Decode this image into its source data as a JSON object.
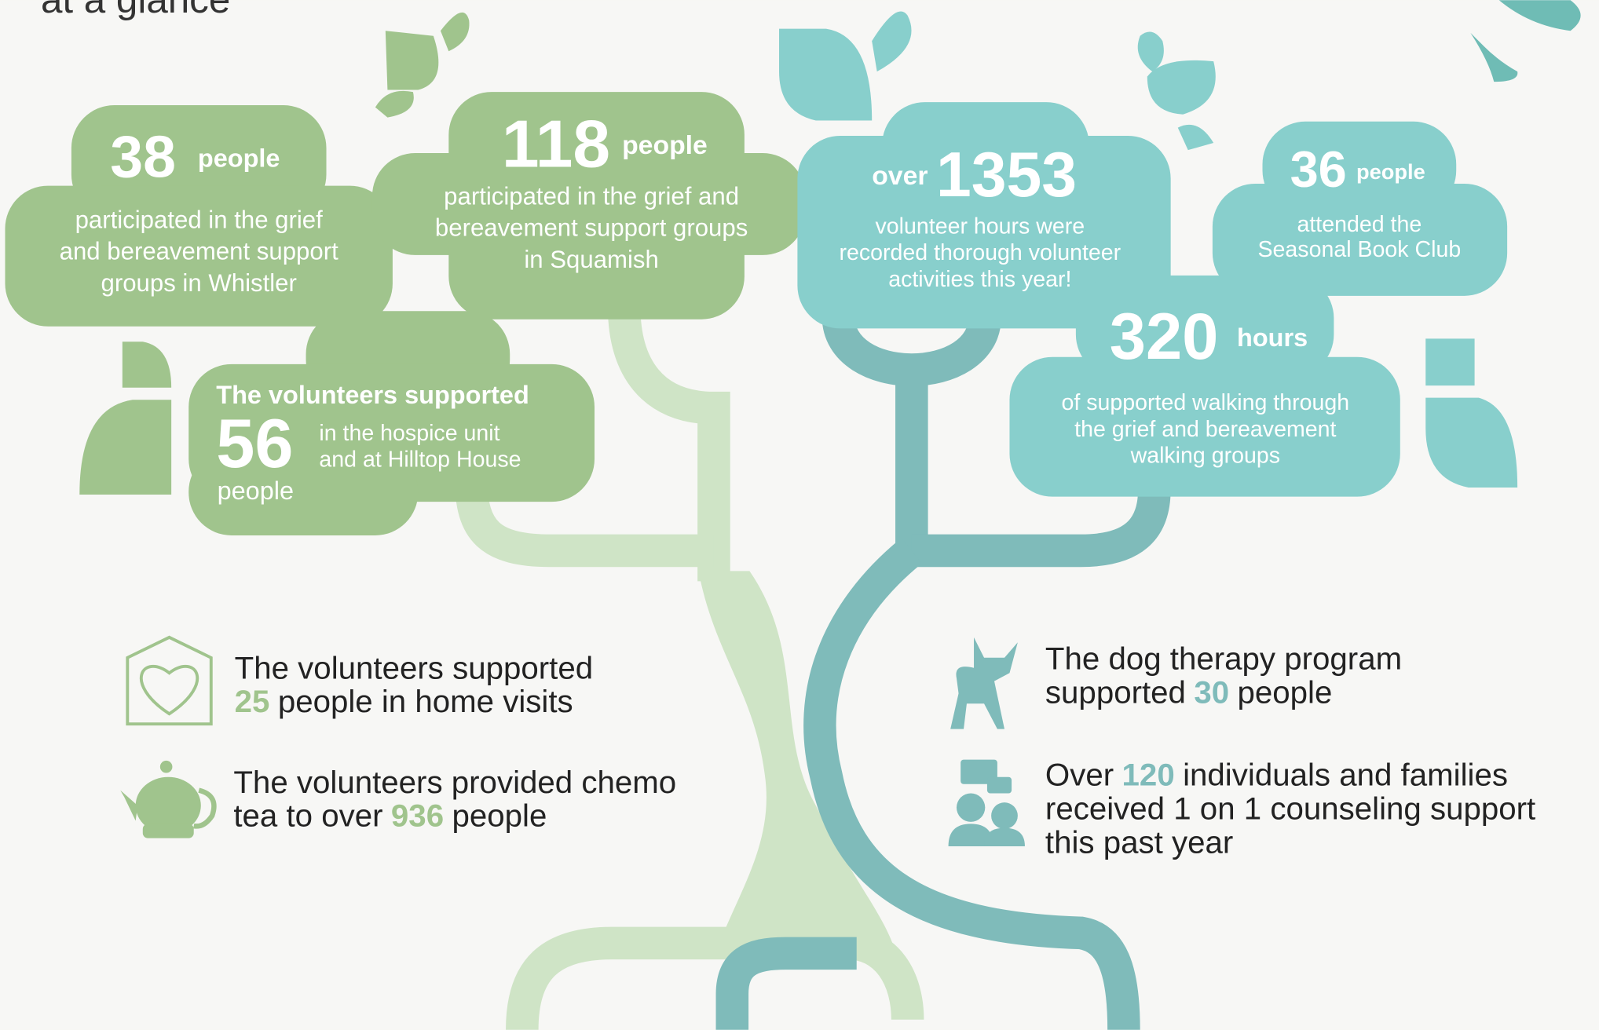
{
  "header": {
    "title": "at a glance"
  },
  "clouds": [
    {
      "number": "38",
      "unit": "people",
      "text": [
        "participated in the grief",
        "and bereavement support",
        "groups in Whistler"
      ]
    },
    {
      "number": "118",
      "unit": "people",
      "text": [
        "participated in the grief and",
        "bereavement support groups",
        "in Squamish"
      ]
    },
    {
      "prefix": "over",
      "number": "1353",
      "text": [
        "volunteer hours were",
        "recorded thorough volunteer",
        "activities this year!"
      ]
    },
    {
      "number": "36",
      "unit": "people",
      "text": [
        "attended the",
        "Seasonal Book Club"
      ]
    },
    {
      "number": "320",
      "unit": "hours",
      "text": [
        "of supported walking through",
        "the grief and bereavement",
        "walking groups"
      ]
    },
    {
      "lead": "The volunteers supported",
      "number": "56",
      "unit": "people",
      "text": [
        "in the hospice unit",
        "and at Hilltop House"
      ]
    }
  ],
  "facts": [
    {
      "lines": [
        [
          "The volunteers supported"
        ],
        [
          {
            "number": "25"
          },
          "people in home visits"
        ]
      ]
    },
    {
      "lines": [
        [
          "The volunteers provided chemo"
        ],
        [
          "tea to over",
          {
            "number": "936"
          },
          "people"
        ]
      ]
    },
    {
      "lines": [
        [
          "The dog therapy program"
        ],
        [
          "supported",
          {
            "number": "30"
          },
          "people"
        ]
      ]
    },
    {
      "lines": [
        [
          "Over",
          {
            "number": "120"
          },
          "individuals and families"
        ],
        [
          "received 1 on 1 counseling support"
        ],
        [
          "this past year"
        ]
      ]
    }
  ]
}
